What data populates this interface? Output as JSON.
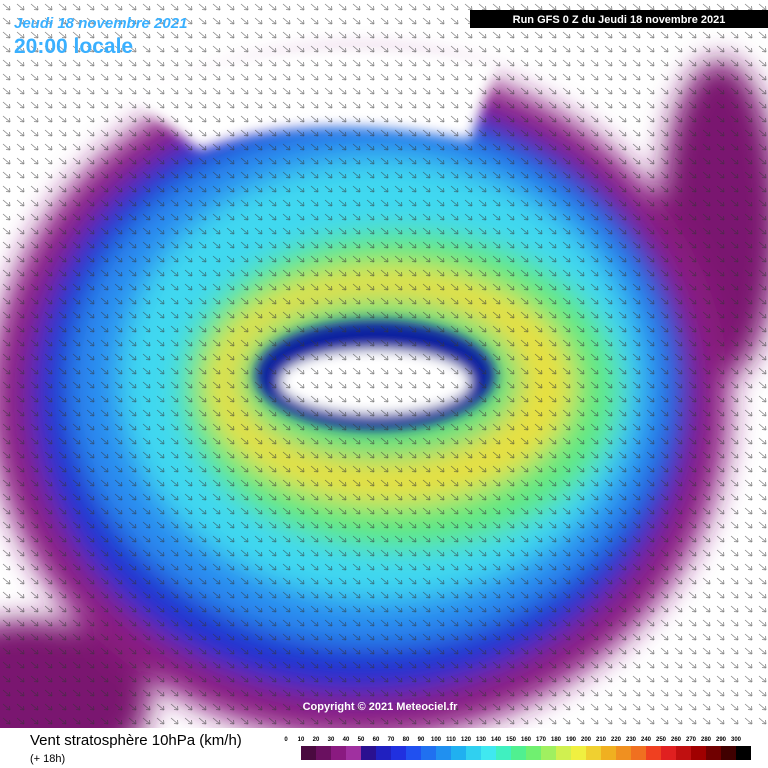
{
  "header": {
    "date": "Jeudi 18 novembre 2021",
    "time": "20:00 locale",
    "run": "Run GFS 0 Z du Jeudi 18 novembre 2021"
  },
  "copyright": "Copyright © 2021 Meteociel.fr",
  "footer": {
    "title": "Vent stratosphère 10hPa (km/h)",
    "lead": "(+ 18h)"
  },
  "legend": {
    "labels": [
      0,
      10,
      20,
      30,
      40,
      50,
      60,
      70,
      80,
      90,
      100,
      110,
      120,
      130,
      140,
      150,
      160,
      170,
      180,
      190,
      200,
      210,
      220,
      230,
      240,
      250,
      260,
      270,
      280,
      290,
      300
    ]
  }
}
